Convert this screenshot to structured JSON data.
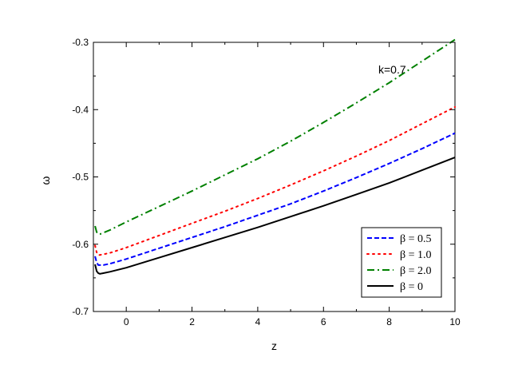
{
  "chart_data": {
    "type": "line",
    "title": "",
    "xlabel": "z",
    "ylabel": "ω",
    "xlim": [
      -1,
      10
    ],
    "ylim": [
      -0.7,
      -0.3
    ],
    "xticks": [
      0,
      2,
      4,
      6,
      8,
      10
    ],
    "xtick_labels": [
      "0",
      "2",
      "4",
      "6",
      "8",
      "10"
    ],
    "yticks": [
      -0.7,
      -0.6,
      -0.5,
      -0.4,
      -0.3
    ],
    "ytick_labels": [
      "-0.7",
      "-0.6",
      "-0.5",
      "-0.4",
      "-0.3"
    ],
    "annotation": "k=0.7",
    "grid": false,
    "legend_position": "bottom-right",
    "series": [
      {
        "name": "β = 0.5",
        "color": "#0000ff",
        "dash": "dash",
        "x": [
          -0.95,
          -0.9,
          -0.85,
          -0.8,
          -0.7,
          -0.5,
          0,
          1,
          2,
          3,
          4,
          5,
          6,
          7,
          8,
          9,
          10
        ],
        "y": [
          -0.618,
          -0.627,
          -0.631,
          -0.631,
          -0.631,
          -0.629,
          -0.622,
          -0.606,
          -0.59,
          -0.574,
          -0.557,
          -0.54,
          -0.521,
          -0.501,
          -0.48,
          -0.458,
          -0.435
        ]
      },
      {
        "name": "β = 1.0",
        "color": "#ff0000",
        "dash": "dot",
        "x": [
          -0.95,
          -0.9,
          -0.85,
          -0.8,
          -0.7,
          -0.5,
          0,
          1,
          2,
          3,
          4,
          5,
          6,
          7,
          8,
          9,
          10
        ],
        "y": [
          -0.602,
          -0.612,
          -0.616,
          -0.616,
          -0.615,
          -0.613,
          -0.605,
          -0.587,
          -0.569,
          -0.551,
          -0.532,
          -0.512,
          -0.491,
          -0.469,
          -0.446,
          -0.421,
          -0.396
        ]
      },
      {
        "name": "β = 2.0",
        "color": "#008000",
        "dash": "dashdot",
        "x": [
          -0.95,
          -0.9,
          -0.85,
          -0.8,
          -0.7,
          -0.5,
          0,
          1,
          2,
          3,
          4,
          5,
          6,
          7,
          8,
          9,
          10
        ],
        "y": [
          -0.573,
          -0.582,
          -0.585,
          -0.585,
          -0.583,
          -0.579,
          -0.567,
          -0.544,
          -0.521,
          -0.497,
          -0.473,
          -0.447,
          -0.419,
          -0.39,
          -0.36,
          -0.328,
          -0.296
        ]
      },
      {
        "name": "β = 0",
        "color": "#000000",
        "dash": "solid",
        "x": [
          -0.95,
          -0.9,
          -0.85,
          -0.8,
          -0.7,
          -0.5,
          0,
          1,
          2,
          3,
          4,
          5,
          6,
          7,
          8,
          9,
          10
        ],
        "y": [
          -0.63,
          -0.64,
          -0.643,
          -0.644,
          -0.643,
          -0.641,
          -0.635,
          -0.62,
          -0.605,
          -0.59,
          -0.575,
          -0.559,
          -0.543,
          -0.526,
          -0.509,
          -0.49,
          -0.471
        ]
      }
    ]
  }
}
